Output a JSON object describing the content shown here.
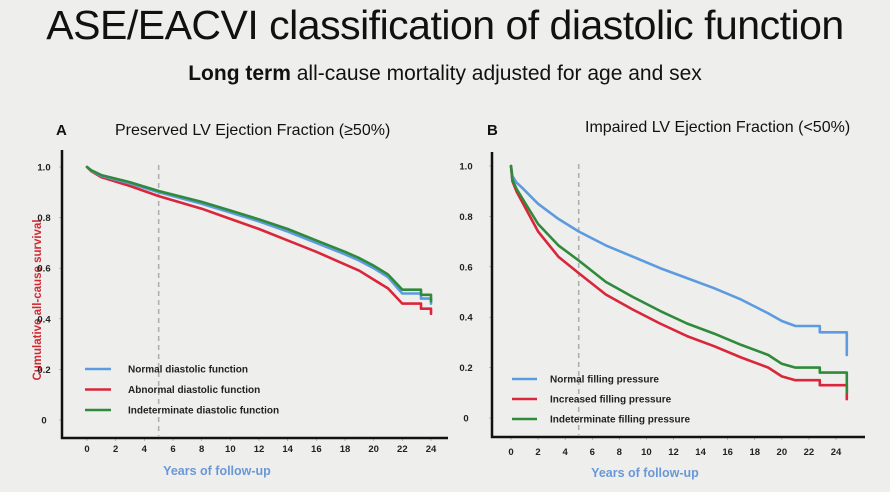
{
  "header": {
    "title": "ASE/EACVI classification of diastolic function",
    "subtitle_bold": "Long term",
    "subtitle_rest": " all-cause mortality adjusted for age and sex"
  },
  "colors": {
    "blue": "#5d9be0",
    "red": "#d9263a",
    "green": "#2f8a3a",
    "axis": "#111111",
    "dashed": "#b0b0b0"
  },
  "chart_data": [
    {
      "type": "line",
      "panel": "A",
      "title": "Preserved LV Ejection Fraction (≥50%)",
      "xlabel": "Years of follow-up",
      "ylabel": "Cumulative all-cause survival",
      "xlim": [
        0,
        24
      ],
      "ylim": [
        0,
        1.0
      ],
      "xticks": [
        "0",
        "2",
        "4",
        "6",
        "8",
        "10",
        "12",
        "14",
        "16",
        "18",
        "20",
        "22",
        "24"
      ],
      "yticks": [
        "0",
        "0.2",
        "0.4",
        "0.6",
        "0.8",
        "1.0"
      ],
      "reference_line_x": 5,
      "legend_position": "bottom-left",
      "series": [
        {
          "name": "Normal diastolic function",
          "color_key": "blue",
          "x": [
            0,
            0.3,
            1,
            3,
            5,
            8,
            10,
            12,
            14,
            16,
            18,
            19,
            20,
            21,
            22,
            23.3,
            23.3,
            24,
            24
          ],
          "y": [
            1.0,
            0.985,
            0.965,
            0.935,
            0.9,
            0.855,
            0.82,
            0.785,
            0.745,
            0.7,
            0.655,
            0.63,
            0.6,
            0.565,
            0.5,
            0.5,
            0.48,
            0.48,
            0.46
          ]
        },
        {
          "name": "Abnormal diastolic function",
          "color_key": "red",
          "x": [
            0,
            0.3,
            1,
            3,
            5,
            8,
            10,
            12,
            14,
            16,
            18,
            19,
            20,
            21,
            22,
            23.3,
            23.3,
            24,
            24
          ],
          "y": [
            1.0,
            0.983,
            0.96,
            0.925,
            0.885,
            0.835,
            0.795,
            0.755,
            0.71,
            0.665,
            0.615,
            0.59,
            0.555,
            0.52,
            0.46,
            0.46,
            0.44,
            0.44,
            0.42
          ]
        },
        {
          "name": "Indeterminate diastolic function",
          "color_key": "green",
          "x": [
            0,
            0.3,
            1,
            3,
            5,
            8,
            10,
            12,
            14,
            16,
            18,
            19,
            20,
            21,
            22,
            23.3,
            23.3,
            24,
            24
          ],
          "y": [
            1.0,
            0.987,
            0.968,
            0.94,
            0.905,
            0.862,
            0.828,
            0.793,
            0.755,
            0.71,
            0.665,
            0.64,
            0.61,
            0.575,
            0.515,
            0.515,
            0.495,
            0.495,
            0.47
          ]
        }
      ]
    },
    {
      "type": "line",
      "panel": "B",
      "title": "Impaired LV Ejection Fraction (<50%)",
      "xlabel": "Years of follow-up",
      "ylabel": "",
      "xlim": [
        0,
        24
      ],
      "ylim": [
        0,
        1.0
      ],
      "xticks": [
        "0",
        "2",
        "4",
        "6",
        "8",
        "10",
        "12",
        "14",
        "16",
        "18",
        "20",
        "22",
        "24"
      ],
      "yticks": [
        "0",
        "0.2",
        "0.4",
        "0.6",
        "0.8",
        "1.0"
      ],
      "reference_line_x": 5,
      "legend_position": "bottom-left",
      "series": [
        {
          "name": "Normal filling pressure",
          "color_key": "blue",
          "x": [
            0,
            0.1,
            0.4,
            0.8,
            2,
            3.5,
            5,
            7,
            9,
            11,
            13,
            15,
            17,
            19,
            20,
            21,
            22.8,
            22.8,
            24.8,
            24.8
          ],
          "y": [
            1.0,
            0.96,
            0.935,
            0.915,
            0.85,
            0.79,
            0.74,
            0.685,
            0.64,
            0.595,
            0.555,
            0.515,
            0.47,
            0.415,
            0.385,
            0.365,
            0.365,
            0.34,
            0.34,
            0.25
          ]
        },
        {
          "name": "Increased filling pressure",
          "color_key": "red",
          "x": [
            0,
            0.1,
            0.4,
            0.8,
            2,
            3.5,
            5,
            7,
            9,
            11,
            13,
            15,
            17,
            19,
            20,
            21,
            22.8,
            22.8,
            24.8,
            24.8
          ],
          "y": [
            1.0,
            0.94,
            0.9,
            0.86,
            0.74,
            0.64,
            0.575,
            0.49,
            0.43,
            0.375,
            0.325,
            0.285,
            0.24,
            0.2,
            0.165,
            0.15,
            0.15,
            0.13,
            0.13,
            0.075
          ]
        },
        {
          "name": "Indeterminate filling pressure",
          "color_key": "green",
          "x": [
            0,
            0.1,
            0.4,
            0.8,
            2,
            3.5,
            5,
            7,
            9,
            11,
            13,
            15,
            17,
            19,
            20,
            21,
            22.8,
            22.8,
            24.8,
            24.8
          ],
          "y": [
            1.0,
            0.945,
            0.91,
            0.875,
            0.77,
            0.685,
            0.625,
            0.54,
            0.48,
            0.425,
            0.375,
            0.335,
            0.29,
            0.25,
            0.215,
            0.2,
            0.2,
            0.18,
            0.18,
            0.1
          ]
        }
      ]
    }
  ]
}
